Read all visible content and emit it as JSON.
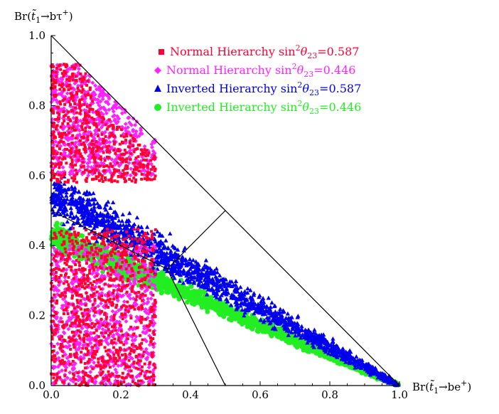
{
  "chart_data": {
    "type": "scatter",
    "xlabel": {
      "pre": "Br(",
      "t": "t̃",
      "sub": "1",
      "post": "→be",
      "sup": "+",
      "end": ")"
    },
    "ylabel": {
      "pre": "Br(",
      "t": "t̃",
      "sub": "1",
      "post": "→bτ",
      "sup": "+",
      "end": ")"
    },
    "xlim": [
      0,
      1
    ],
    "ylim": [
      0,
      1
    ],
    "xticks": [
      "0.0",
      "0.2",
      "0.4",
      "0.6",
      "0.8",
      "1.0"
    ],
    "yticks": [
      "0.0",
      "0.2",
      "0.4",
      "0.6",
      "0.8",
      "1.0"
    ],
    "grid": false,
    "legend_position": "top-right",
    "series": [
      {
        "name": {
          "pre": "Normal Hierarchy sin",
          "sup": "2",
          "theta": "θ",
          "sub": "23",
          "val": "=0.587"
        },
        "marker": "square",
        "color": "#ff0033",
        "regions": [
          {
            "x": [
              0.0,
              0.3
            ],
            "y": [
              0.0,
              0.45
            ]
          },
          {
            "x": [
              0.0,
              0.3
            ],
            "y": [
              0.58,
              0.92
            ]
          }
        ]
      },
      {
        "name": {
          "pre": "Normal Hierarchy sin",
          "sup": "2",
          "theta": "θ",
          "sub": "23",
          "val": "=0.446"
        },
        "marker": "diamond",
        "color": "#ff22ff",
        "regions": [
          {
            "x": [
              0.0,
              0.3
            ],
            "y": [
              0.0,
              0.4
            ]
          },
          {
            "x": [
              0.0,
              0.3
            ],
            "y": [
              0.6,
              0.92
            ]
          }
        ]
      },
      {
        "name": {
          "pre": "Inverted Hierarchy sin",
          "sup": "2",
          "theta": "θ",
          "sub": "23",
          "val": "=0.587"
        },
        "marker": "triangle",
        "color": "#0000ee",
        "band": {
          "start": [
            0.0,
            0.55
          ],
          "end": [
            1.0,
            0.0
          ],
          "width": 0.14
        }
      },
      {
        "name": {
          "pre": "Inverted Hierarchy sin",
          "sup": "2",
          "theta": "θ",
          "sub": "23",
          "val": "=0.446"
        },
        "marker": "circle",
        "color": "#22ee22",
        "band": {
          "start": [
            0.0,
            0.43
          ],
          "end": [
            1.0,
            0.0
          ],
          "width": 0.08
        }
      }
    ],
    "lines": [
      {
        "x": [
          0,
          1
        ],
        "y": [
          1,
          0
        ]
      },
      {
        "x": [
          0,
          0.333,
          0.5
        ],
        "y": [
          0.5,
          0.333,
          0
        ]
      },
      {
        "x": [
          0.333,
          0.5
        ],
        "y": [
          0.333,
          0.5
        ]
      }
    ]
  }
}
